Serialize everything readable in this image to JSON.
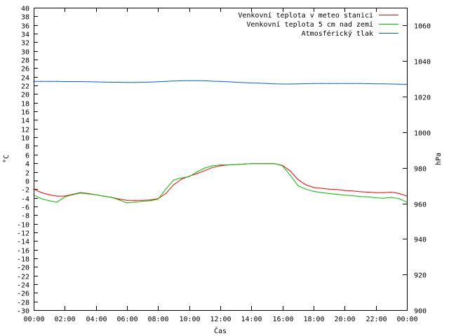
{
  "chart_data": {
    "type": "line",
    "xlabel": "Čas",
    "ylabel": "°C",
    "y2label": "hPa",
    "ylim": [
      -30,
      40
    ],
    "y2lim": [
      900,
      1070
    ],
    "x_ticks": [
      "00:00",
      "02:00",
      "04:00",
      "06:00",
      "08:00",
      "10:00",
      "12:00",
      "14:00",
      "16:00",
      "18:00",
      "20:00",
      "22:00",
      "00:00"
    ],
    "y_ticks": [
      -30,
      -28,
      -26,
      -24,
      -22,
      -20,
      -18,
      -16,
      -14,
      -12,
      -10,
      -8,
      -6,
      -4,
      -2,
      0,
      2,
      4,
      6,
      8,
      10,
      12,
      14,
      16,
      18,
      20,
      22,
      24,
      26,
      28,
      30,
      32,
      34,
      36,
      38,
      40
    ],
    "y2_ticks": [
      900,
      920,
      940,
      960,
      980,
      1000,
      1020,
      1040,
      1060
    ],
    "grid": false,
    "legend_position": "top-right",
    "x_hours": [
      0,
      0.5,
      1,
      1.5,
      2,
      2.5,
      3,
      3.5,
      4,
      4.5,
      5,
      5.5,
      6,
      6.5,
      7,
      7.5,
      8,
      8.5,
      9,
      9.5,
      10,
      10.5,
      11,
      11.5,
      12,
      12.5,
      13,
      13.5,
      14,
      14.5,
      15,
      15.5,
      16,
      16.5,
      17,
      17.5,
      18,
      18.5,
      19,
      19.5,
      20,
      20.5,
      21,
      21.5,
      22,
      22.5,
      23,
      23.5,
      24
    ],
    "series": [
      {
        "name": "Venkovní teplota v meteo stanici",
        "color": "#ff0000",
        "axis": "left",
        "values": [
          -2,
          -2.8,
          -3.3,
          -3.6,
          -3.6,
          -3.2,
          -2.8,
          -3.0,
          -3.3,
          -3.6,
          -3.9,
          -4.3,
          -4.6,
          -4.6,
          -4.6,
          -4.5,
          -4.2,
          -3.0,
          -1.0,
          0.3,
          1.0,
          1.6,
          2.3,
          3.0,
          3.4,
          3.6,
          3.7,
          3.8,
          3.9,
          3.9,
          3.9,
          3.9,
          3.5,
          2.2,
          0.2,
          -1.0,
          -1.6,
          -1.8,
          -2.0,
          -2.1,
          -2.3,
          -2.4,
          -2.6,
          -2.7,
          -2.8,
          -2.8,
          -2.7,
          -3.0,
          -3.6
        ]
      },
      {
        "name": "Venkovní teplota 5 cm nad zemí",
        "color": "#00c000",
        "axis": "left",
        "values": [
          -3.4,
          -4.2,
          -4.7,
          -5.0,
          -3.8,
          -3.3,
          -2.9,
          -3.1,
          -3.3,
          -3.6,
          -3.9,
          -4.5,
          -5.2,
          -5.0,
          -4.8,
          -4.7,
          -4.3,
          -2.0,
          0.1,
          0.6,
          0.9,
          2.0,
          2.9,
          3.4,
          3.6,
          3.6,
          3.7,
          3.8,
          3.9,
          3.9,
          3.9,
          3.9,
          3.4,
          1.2,
          -1.2,
          -2.0,
          -2.5,
          -2.8,
          -3.0,
          -3.2,
          -3.4,
          -3.5,
          -3.7,
          -3.8,
          -4.0,
          -4.1,
          -3.9,
          -4.2,
          -5.0
        ]
      },
      {
        "name": "Atmosférický tlak",
        "color": "#0066cc",
        "axis": "right",
        "values": [
          1028.6,
          1028.6,
          1028.6,
          1028.6,
          1028.5,
          1028.5,
          1028.5,
          1028.4,
          1028.3,
          1028.2,
          1028.1,
          1028.1,
          1028.0,
          1028.0,
          1028.1,
          1028.2,
          1028.4,
          1028.6,
          1028.8,
          1028.9,
          1029.0,
          1029.0,
          1028.9,
          1028.7,
          1028.6,
          1028.4,
          1028.1,
          1027.9,
          1027.7,
          1027.6,
          1027.4,
          1027.2,
          1027.1,
          1027.1,
          1027.2,
          1027.3,
          1027.4,
          1027.4,
          1027.4,
          1027.4,
          1027.4,
          1027.4,
          1027.4,
          1027.3,
          1027.2,
          1027.2,
          1027.1,
          1027.0,
          1026.9
        ]
      }
    ]
  }
}
